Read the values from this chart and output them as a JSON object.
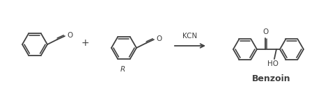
{
  "background_color": "#ffffff",
  "line_color": "#404040",
  "line_width": 1.3,
  "text_color": "#404040",
  "plus_sign": "+",
  "reagent": "KCN",
  "product_name": "Benzoin",
  "oxygen_label": "O",
  "hydroxyl_label": "HO",
  "figsize": [
    4.74,
    1.34
  ],
  "dpi": 100
}
